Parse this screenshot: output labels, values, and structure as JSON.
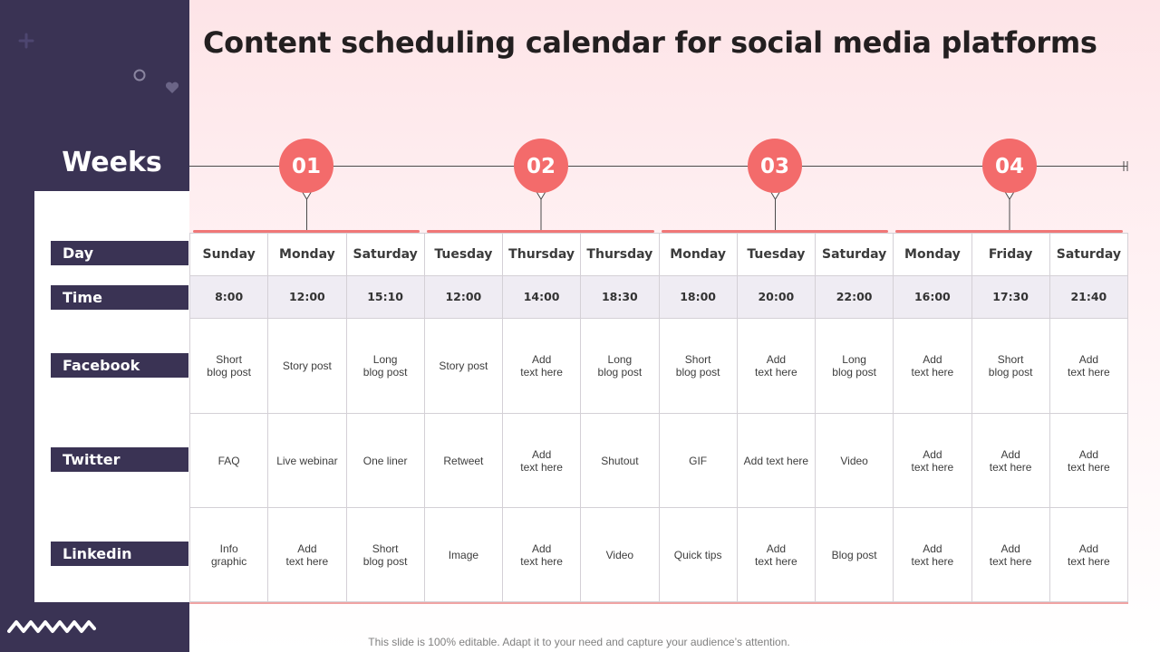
{
  "title": "Content scheduling calendar for social media platforms",
  "weeks_label": "Weeks",
  "week_numbers": [
    "01",
    "02",
    "03",
    "04"
  ],
  "row_labels": {
    "day": "Day",
    "time": "Time",
    "facebook": "Facebook",
    "twitter": "Twitter",
    "linkedin": "Linkedin"
  },
  "days": [
    "Sunday",
    "Monday",
    "Saturday",
    "Tuesday",
    "Thursday",
    "Thursday",
    "Monday",
    "Tuesday",
    "Saturday",
    "Monday",
    "Friday",
    "Saturday"
  ],
  "times": [
    "8:00",
    "12:00",
    "15:10",
    "12:00",
    "14:00",
    "18:30",
    "18:00",
    "20:00",
    "22:00",
    "16:00",
    "17:30",
    "21:40"
  ],
  "facebook": [
    "Short\nblog post",
    "Story post",
    "Long\nblog post",
    "Story post",
    "Add\ntext here",
    "Long\nblog post",
    "Short\nblog post",
    "Add\ntext here",
    "Long\nblog post",
    "Add\ntext here",
    "Short\nblog post",
    "Add\ntext here"
  ],
  "twitter": [
    "FAQ",
    "Live webinar",
    "One liner",
    "Retweet",
    "Add\ntext here",
    "Shutout",
    "GIF",
    "Add text here",
    "Video",
    "Add\ntext here",
    "Add\ntext here",
    "Add\ntext here"
  ],
  "linkedin": [
    "Info\ngraphic",
    "Add\ntext here",
    "Short\nblog post",
    "Image",
    "Add\ntext here",
    "Video",
    "Quick tips",
    "Add\ntext here",
    "Blog post",
    "Add\ntext here",
    "Add\ntext here",
    "Add\ntext here"
  ],
  "footer": "This slide is 100% editable. Adapt it to your need and capture your audience’s attention.",
  "colors": {
    "panel": "#3a3354",
    "accent": "#f36b6b",
    "time_row": "#efecf3"
  }
}
